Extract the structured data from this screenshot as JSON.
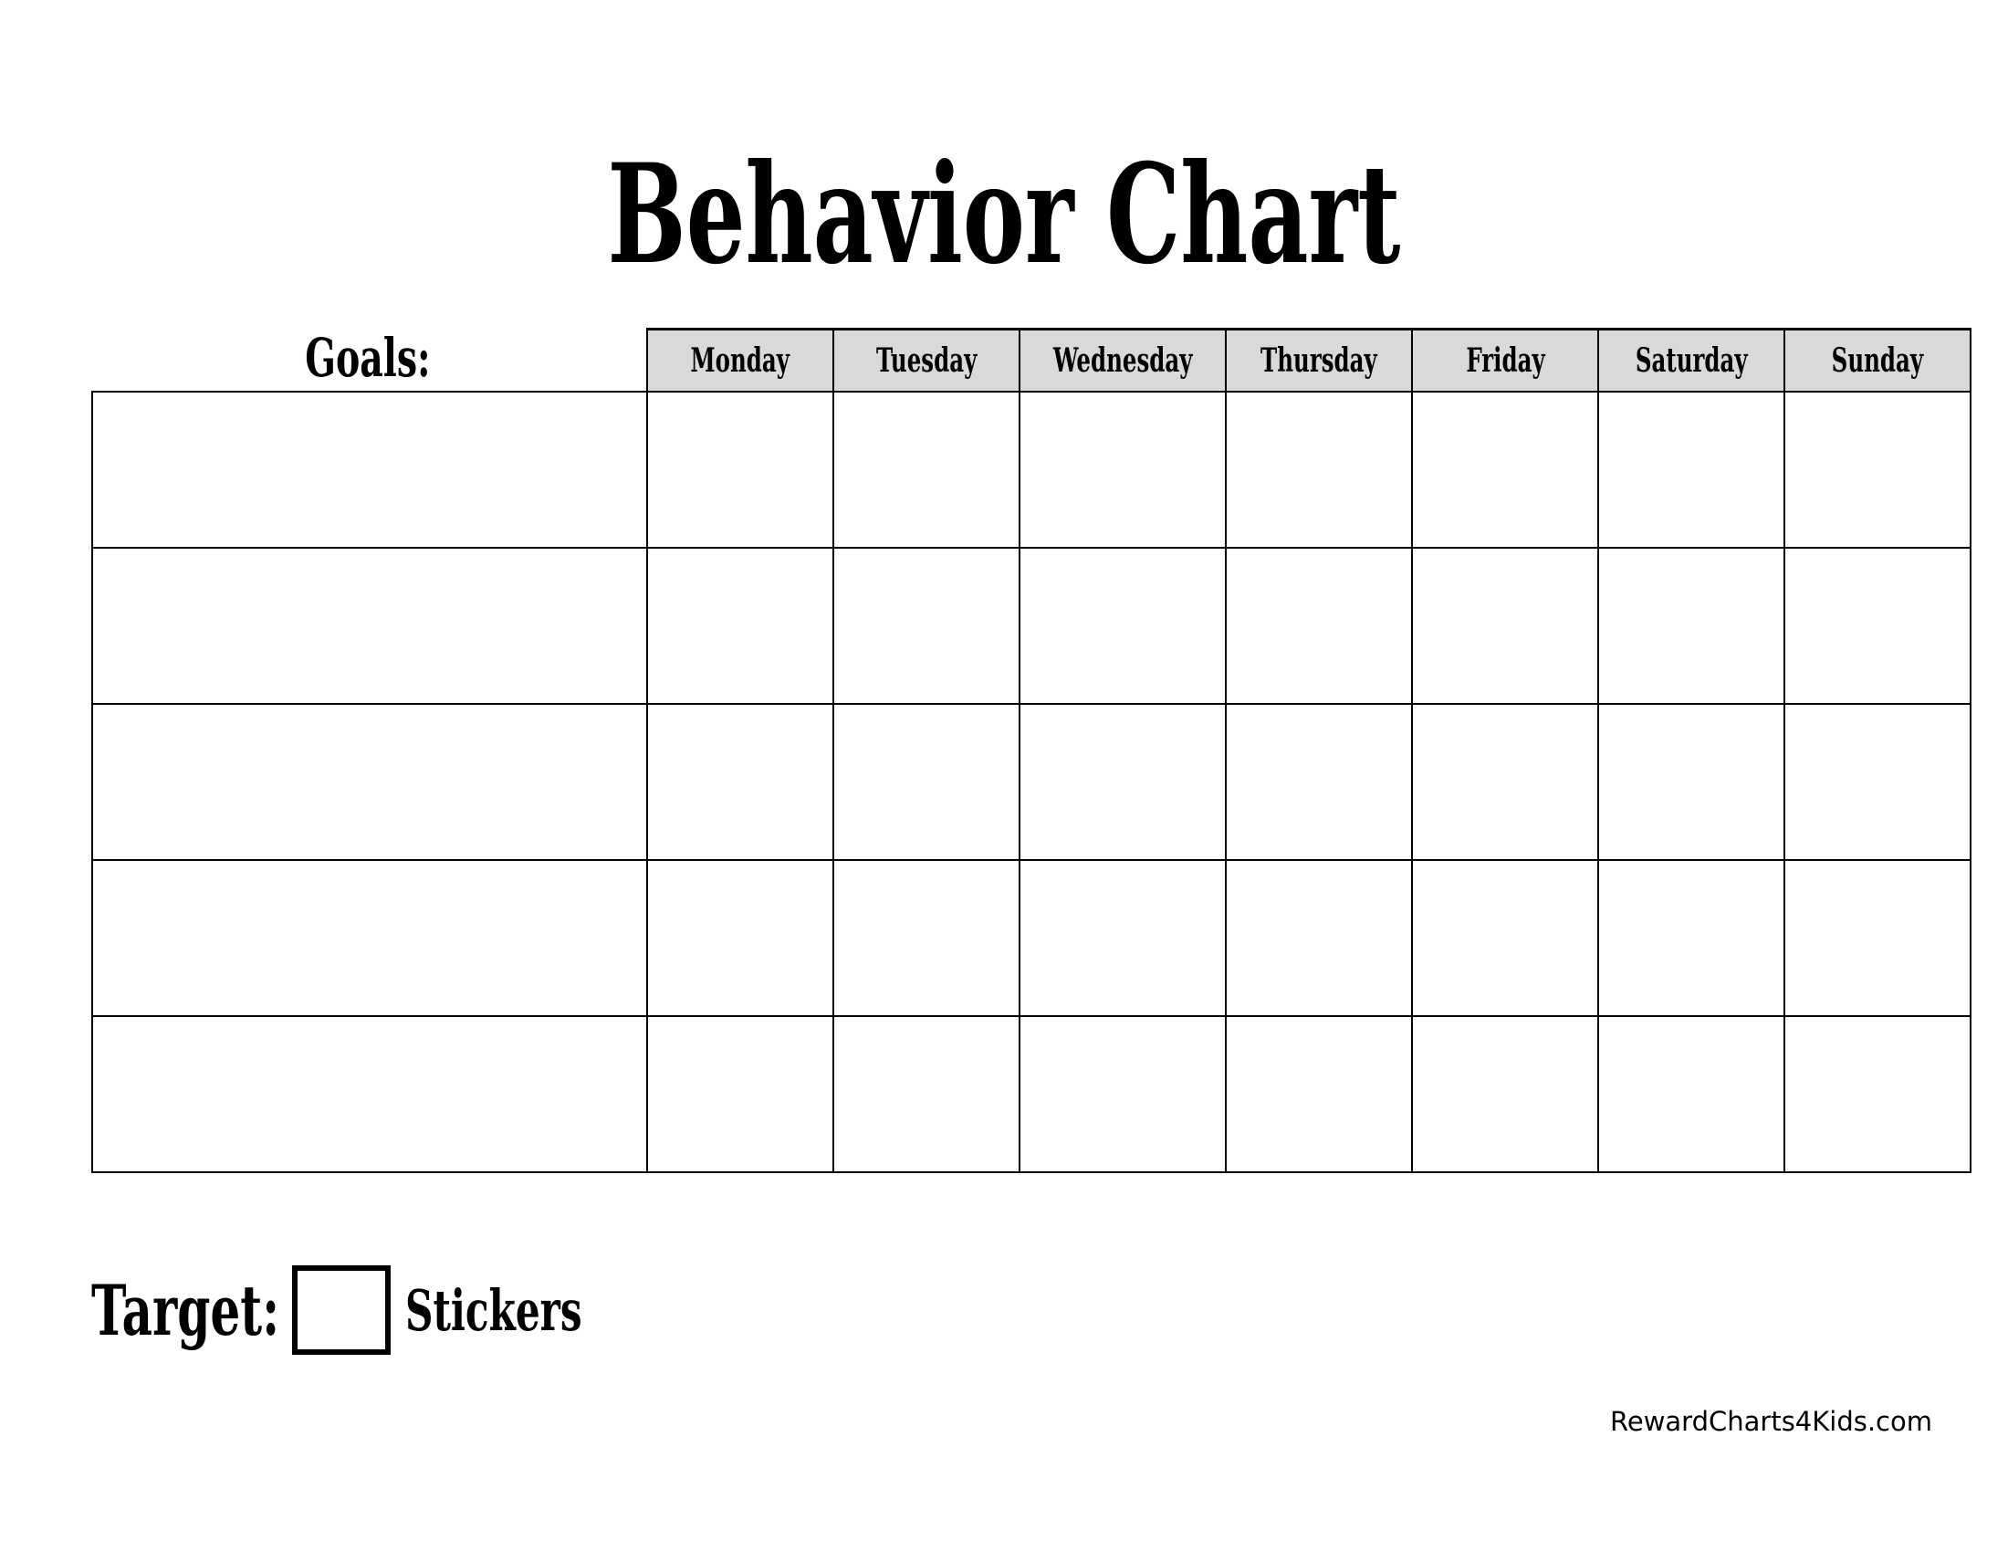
{
  "title": "Behavior Chart",
  "goals_label": "Goals:",
  "days": [
    "Monday",
    "Tuesday",
    "Wednesday",
    "Thursday",
    "Friday",
    "Saturday",
    "Sunday"
  ],
  "target_label": "Target:",
  "stickers_label": "Stickers",
  "footer": "RewardCharts4Kids.com"
}
